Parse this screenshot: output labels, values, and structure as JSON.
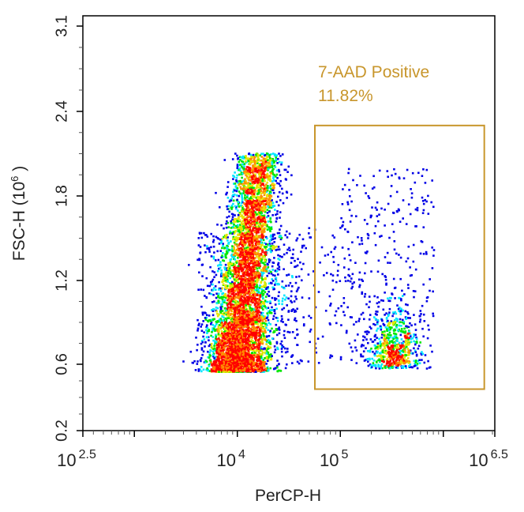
{
  "chart_data": {
    "type": "scatter",
    "style": "density-colored dot plot",
    "xlabel": "PerCP-H",
    "ylabel": "FSC-H (10^6 )",
    "ylabel_parts": {
      "main": "FSC-H (10",
      "sup": "6",
      "end": " )"
    },
    "x_scale": "log10",
    "xlim": [
      316.2,
      3162278
    ],
    "x_ticks": [
      {
        "base": "10",
        "exp": "2.5",
        "value": 316.2
      },
      {
        "base": "10",
        "exp": "4",
        "value": 10000
      },
      {
        "base": "10",
        "exp": "5",
        "value": 100000
      },
      {
        "base": "10",
        "exp": "6.5",
        "value": 3162278
      }
    ],
    "y_scale": "linear",
    "ylim": [
      0.2,
      3.1
    ],
    "y_ticks": [
      "0.2",
      "0.6",
      "1.2",
      "1.8",
      "2.4",
      "3.1"
    ],
    "grid": false,
    "density_colors": [
      "#0000e6",
      "#00e6ff",
      "#00e600",
      "#e6e600",
      "#ff8c00",
      "#ff0000"
    ],
    "populations": [
      {
        "x_center": 10000,
        "x_range": [
          3000,
          40000
        ],
        "y_range": [
          0.55,
          2.15
        ]
      },
      {
        "x_center": 340000,
        "x_range": [
          60000,
          1500000
        ],
        "y_range": [
          0.55,
          2.0
        ]
      }
    ],
    "gate": {
      "name": "7-AAD Positive",
      "percent": "11.82%",
      "x_range": [
        56600,
        2500000
      ],
      "y_range": [
        0.45,
        2.3
      ],
      "color": "#c8962c"
    }
  }
}
